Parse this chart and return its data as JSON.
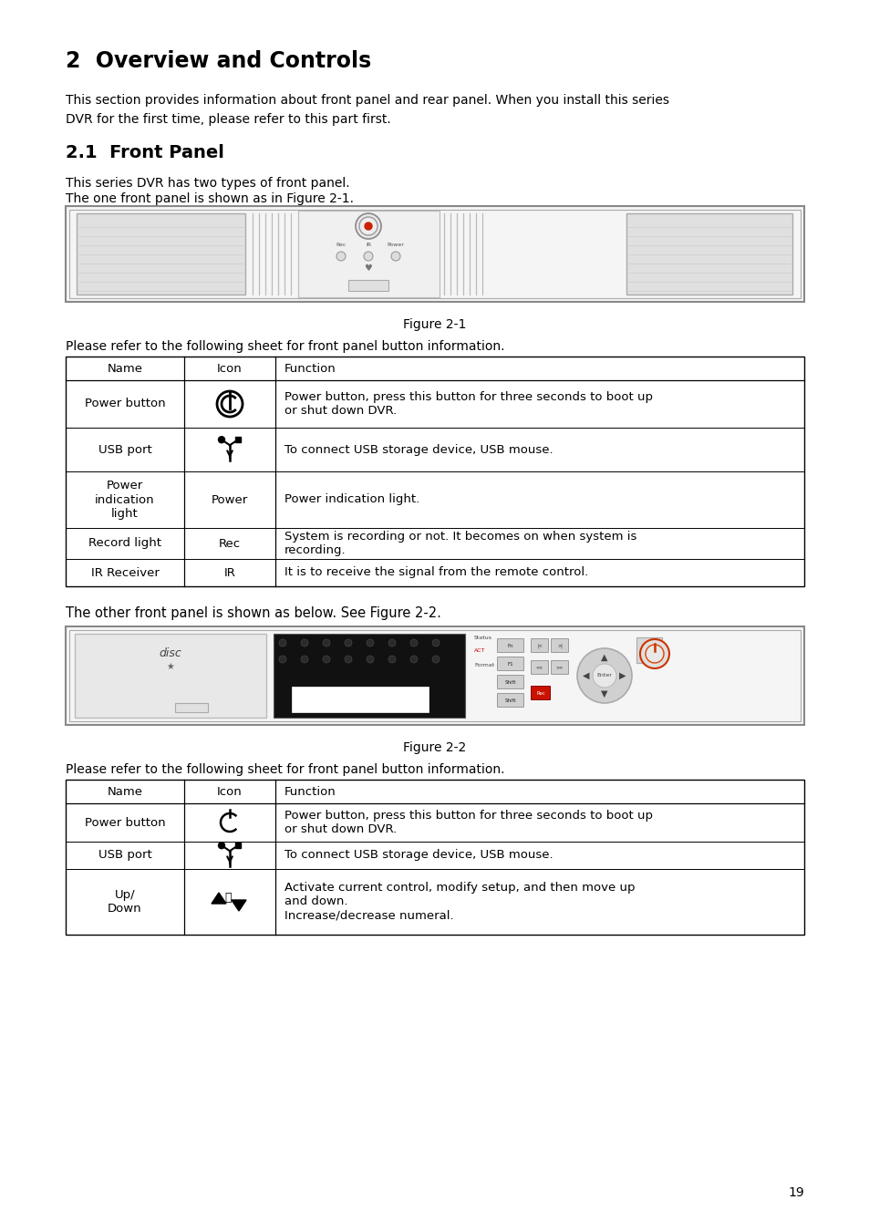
{
  "title": "2  Overview and Controls",
  "h2_title": "2.1  Front Panel",
  "intro_text": "This section provides information about front panel and rear panel. When you install this series\nDVR for the first time, please refer to this part first.",
  "section_text1": "This series DVR has two types of front panel.",
  "section_text2": "The one front panel is shown as in Figure 2-1.",
  "figure1_caption": "Figure 2-1",
  "table1_intro": "Please refer to the following sheet for front panel button information.",
  "table1_headers": [
    "Name",
    "Icon",
    "Function"
  ],
  "table1_rows": [
    [
      "Power button",
      "power_icon",
      "Power button, press this button for three seconds to boot up\nor shut down DVR."
    ],
    [
      "USB port",
      "usb_icon",
      "To connect USB storage device, USB mouse."
    ],
    [
      "Power\nindication\nlight",
      "Power",
      "Power indication light."
    ],
    [
      "Record light",
      "Rec",
      "System is recording or not. It becomes on when system is\nrecording."
    ],
    [
      "IR Receiver",
      "IR",
      "It is to receive the signal from the remote control."
    ]
  ],
  "between_text": "The other front panel is shown as below. See Figure 2-2.",
  "figure2_caption": "Figure 2-2",
  "table2_intro": "Please refer to the following sheet for front panel button information.",
  "table2_headers": [
    "Name",
    "Icon",
    "Function"
  ],
  "table2_rows": [
    [
      "Power button",
      "power_icon2",
      "Power button, press this button for three seconds to boot up\nor shut down DVR."
    ],
    [
      "USB port",
      "usb_icon",
      "To connect USB storage device, USB mouse."
    ],
    [
      "Up/\nDown",
      "updown_icon",
      "Activate current control, modify setup, and then move up\nand down.\nIncrease/decrease numeral."
    ]
  ],
  "page_number": "19",
  "bg_color": "#ffffff",
  "text_color": "#000000"
}
